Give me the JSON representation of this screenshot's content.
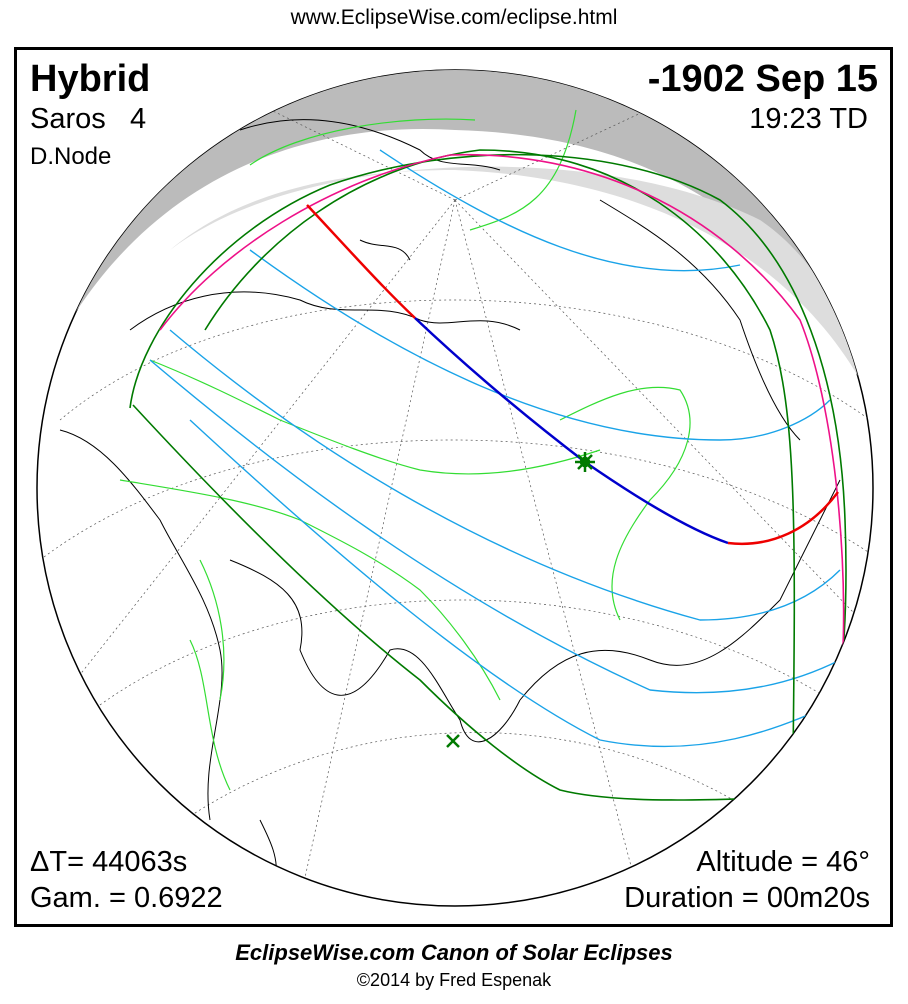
{
  "url": "www.EclipseWise.com/eclipse.html",
  "eclipse": {
    "type": "Hybrid",
    "date": "-1902 Sep 15",
    "saros_label": "Saros",
    "saros_number": "4",
    "time": "19:23 TD",
    "node": "D.Node",
    "delta_t": "ΔT=  44063s",
    "gamma": "Gam. = 0.6922",
    "altitude": "Altitude = 46°",
    "duration": "Duration = 00m20s"
  },
  "footer": {
    "title": "EclipseWise.com Canon of Solar Eclipses",
    "copyright": "©2014 by Fred Espenak"
  },
  "colors": {
    "central_line_total": "#0000cc",
    "central_line_annular": "#ee0000",
    "penumbral_limits": "#007a00",
    "rise_set_limit": "#ee1188",
    "time_contours": "#1aa3e8",
    "borders": "#33dd33",
    "night_shade": "#bbbbbb"
  },
  "markers": [
    "greatest-eclipse-star",
    "subsolar-point-cross"
  ]
}
